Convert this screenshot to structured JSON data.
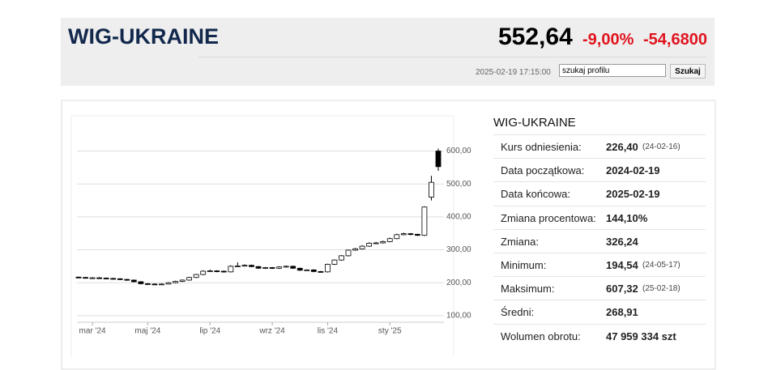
{
  "header": {
    "title": "WIG-UKRAINE",
    "price": "552,64",
    "change_pct": "-9,00%",
    "change": "-54,6800",
    "timestamp": "2025-02-19 17:15:00",
    "search_value": "szukaj profilu",
    "search_button": "Szukaj"
  },
  "stats": {
    "title": "WIG-UKRAINE",
    "rows": [
      [
        "Kurs odniesienia:",
        "226,40",
        "(24-02-16)"
      ],
      [
        "Data początkowa:",
        "2024-02-19",
        null
      ],
      [
        "Data końcowa:",
        "2025-02-19",
        null
      ],
      [
        "Zmiana procentowa:",
        "144,10%",
        null
      ],
      [
        "Zmiana:",
        "326,24",
        null
      ],
      [
        "Minimum:",
        "194,54",
        "(24-05-17)"
      ],
      [
        "Maksimum:",
        "607,32",
        "(25-02-18)"
      ],
      [
        "Średni:",
        "268,91",
        null
      ],
      [
        "Wolumen obrotu:",
        "47 959 334 szt",
        null
      ]
    ]
  },
  "chart_data": {
    "type": "candlestick",
    "categories": [
      null,
      null,
      "mar '24",
      null,
      null,
      null,
      null,
      null,
      null,
      null,
      "maj '24",
      null,
      null,
      null,
      null,
      null,
      null,
      null,
      null,
      "lip '24",
      null,
      null,
      null,
      null,
      null,
      null,
      null,
      null,
      "wrz '24",
      null,
      null,
      null,
      null,
      null,
      null,
      null,
      "lis '24",
      null,
      null,
      null,
      null,
      null,
      null,
      null,
      null,
      "sty '25",
      null,
      null,
      null,
      null,
      null,
      null,
      null
    ],
    "open": [
      217,
      216,
      215,
      215,
      214,
      213,
      212,
      210,
      208,
      203,
      197,
      196,
      195,
      196,
      200,
      204,
      208,
      216,
      225,
      235,
      236,
      235,
      233,
      250,
      251,
      253,
      249,
      244,
      246,
      244,
      248,
      250,
      244,
      238,
      239,
      234,
      233,
      256,
      269,
      282,
      299,
      303,
      311,
      320,
      321,
      325,
      334,
      346,
      349,
      347,
      344,
      460,
      600
    ],
    "high": [
      219,
      218,
      217,
      217,
      216,
      215,
      214,
      212,
      210,
      205,
      199,
      198,
      198,
      202,
      206,
      210,
      218,
      227,
      238,
      240,
      238,
      237,
      253,
      262,
      256,
      255,
      251,
      248,
      248,
      250,
      252,
      252,
      246,
      241,
      241,
      236,
      258,
      271,
      284,
      301,
      306,
      314,
      323,
      324,
      328,
      337,
      349,
      352,
      351,
      349,
      432,
      525,
      607.32
    ],
    "low": [
      214,
      213,
      213,
      212,
      211,
      210,
      208,
      206,
      201,
      195,
      195,
      194.54,
      194.6,
      195,
      198,
      202,
      206,
      214,
      223,
      233,
      232,
      231,
      231,
      248,
      249,
      247,
      242,
      242,
      242,
      242,
      246,
      242,
      236,
      236,
      232,
      231,
      231,
      254,
      267,
      280,
      297,
      301,
      309,
      318,
      319,
      323,
      332,
      344,
      344,
      342,
      342,
      450,
      540
    ],
    "close": [
      216,
      215,
      215,
      214,
      213,
      212,
      210,
      208,
      203,
      197,
      196,
      195,
      196,
      200,
      204,
      208,
      216,
      225,
      235,
      236,
      235,
      233,
      250,
      251,
      253,
      249,
      244,
      246,
      244,
      248,
      250,
      244,
      238,
      239,
      234,
      233,
      256,
      269,
      282,
      299,
      303,
      311,
      320,
      321,
      325,
      334,
      346,
      349,
      347,
      344,
      430,
      505,
      552.64
    ],
    "up_color": "#ffffff",
    "down_color": "#000000",
    "ylim": [
      80,
      690
    ],
    "yticks": [
      {
        "value": 100,
        "label": "100,00"
      },
      {
        "value": 200,
        "label": "200,00"
      },
      {
        "value": 300,
        "label": "300,00"
      },
      {
        "value": 400,
        "label": "400,00"
      },
      {
        "value": 500,
        "label": "500,00"
      },
      {
        "value": 600,
        "label": "600,00"
      }
    ],
    "grid": true
  }
}
